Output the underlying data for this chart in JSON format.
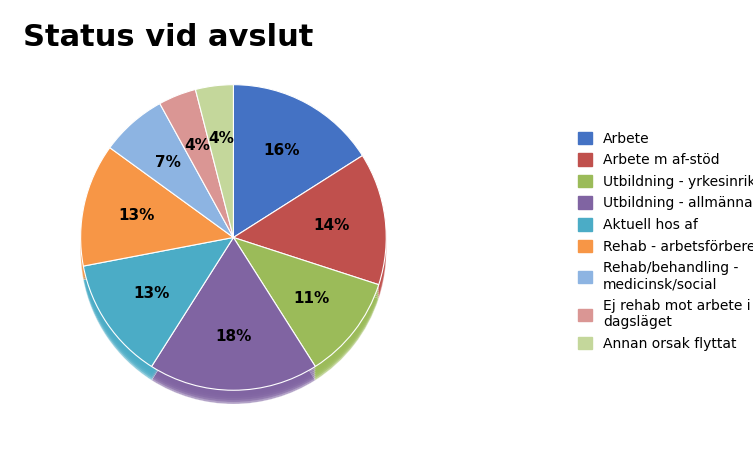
{
  "title": "Status vid avslut",
  "slices": [
    16,
    14,
    11,
    18,
    13,
    13,
    7,
    4,
    4
  ],
  "pct_labels": [
    "16%",
    "14%",
    "11%",
    "18%",
    "13%",
    "13%",
    "7%",
    "4%",
    "4%"
  ],
  "colors": [
    "#4472C4",
    "#C0504D",
    "#9BBB59",
    "#8064A2",
    "#4BACC6",
    "#F79646",
    "#8DB4E2",
    "#DA9694",
    "#C4D79B"
  ],
  "legend_labels": [
    "Arbete",
    "Arbete m af-stöd",
    "Utbildning - yrkesinriktad",
    "Utbildning - allmänna studier",
    "Aktuell hos af",
    "Rehab - arbetsförberedande",
    "Rehab/behandling -\nmedicinsk/social",
    "Ej rehab mot arbete i\ndagsläget",
    "Annan orsak flyttat"
  ],
  "title_fontsize": 22,
  "label_fontsize": 11,
  "legend_fontsize": 10,
  "background_color": "#FFFFFF",
  "startangle": 90,
  "shadow_color": "#AAAAAA"
}
